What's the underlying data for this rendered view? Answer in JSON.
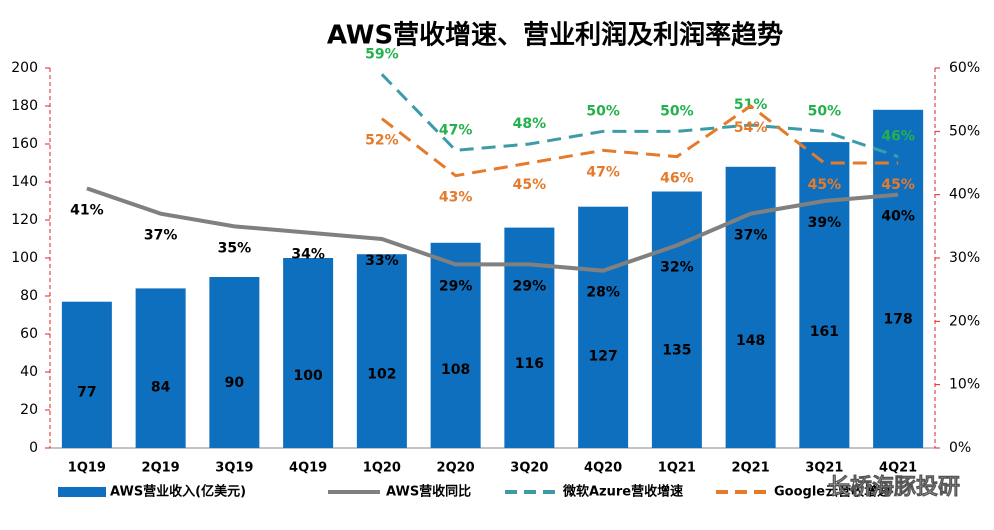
{
  "chart_data": {
    "type": "bar",
    "title": "AWS营收增速、营业利润及利润率趋势",
    "watermark": "长桥海豚投研",
    "categories": [
      "1Q19",
      "2Q19",
      "3Q19",
      "4Q19",
      "1Q20",
      "2Q20",
      "3Q20",
      "4Q20",
      "1Q21",
      "2Q21",
      "3Q21",
      "4Q21"
    ],
    "bar_series": {
      "name": "AWS营业收入(亿美元)",
      "color": "#0e6fbf",
      "values": [
        77,
        84,
        90,
        100,
        102,
        108,
        116,
        127,
        135,
        148,
        161,
        178
      ]
    },
    "series": [
      {
        "name": "AWS营收同比",
        "color": "#808080",
        "dash": false,
        "label_color": "#000000",
        "label_side": "below",
        "axis": "y2",
        "values": [
          41,
          37,
          35,
          34,
          33,
          29,
          29,
          28,
          32,
          37,
          39,
          40
        ],
        "value_labels": [
          "41%",
          "37%",
          "35%",
          "34%",
          "33%",
          "29%",
          "29%",
          "28%",
          "32%",
          "37%",
          "39%",
          "40%"
        ]
      },
      {
        "name": "微软Azure营收增速",
        "color": "#3b9ca8",
        "dash": true,
        "label_color": "#22b14c",
        "label_side": "above",
        "axis": "y2",
        "values": [
          null,
          null,
          null,
          null,
          59,
          47,
          48,
          50,
          50,
          51,
          50,
          46
        ],
        "value_labels": [
          null,
          null,
          null,
          null,
          "59%",
          "47%",
          "48%",
          "50%",
          "50%",
          "51%",
          "50%",
          "46%"
        ]
      },
      {
        "name": "Google云营收增速",
        "color": "#e57a2b",
        "dash": true,
        "label_color": "#e57a2b",
        "label_side": "below",
        "axis": "y2",
        "values": [
          null,
          null,
          null,
          null,
          52,
          43,
          45,
          47,
          46,
          54,
          45,
          45
        ],
        "value_labels": [
          null,
          null,
          null,
          null,
          "52%",
          "43%",
          "45%",
          "47%",
          "46%",
          "54%",
          "45%",
          "45%"
        ]
      }
    ],
    "ylim": [
      0,
      200
    ],
    "yticks": [
      0,
      20,
      40,
      60,
      80,
      100,
      120,
      140,
      160,
      180,
      200
    ],
    "y2lim": [
      0,
      60
    ],
    "y2ticks": [
      {
        "value": 0,
        "label": "0%"
      },
      {
        "value": 10,
        "label": "10%"
      },
      {
        "value": 20,
        "label": "20%"
      },
      {
        "value": 30,
        "label": "30%"
      },
      {
        "value": 40,
        "label": "40%"
      },
      {
        "value": 50,
        "label": "50%"
      },
      {
        "value": 60,
        "label": "60%"
      }
    ]
  }
}
